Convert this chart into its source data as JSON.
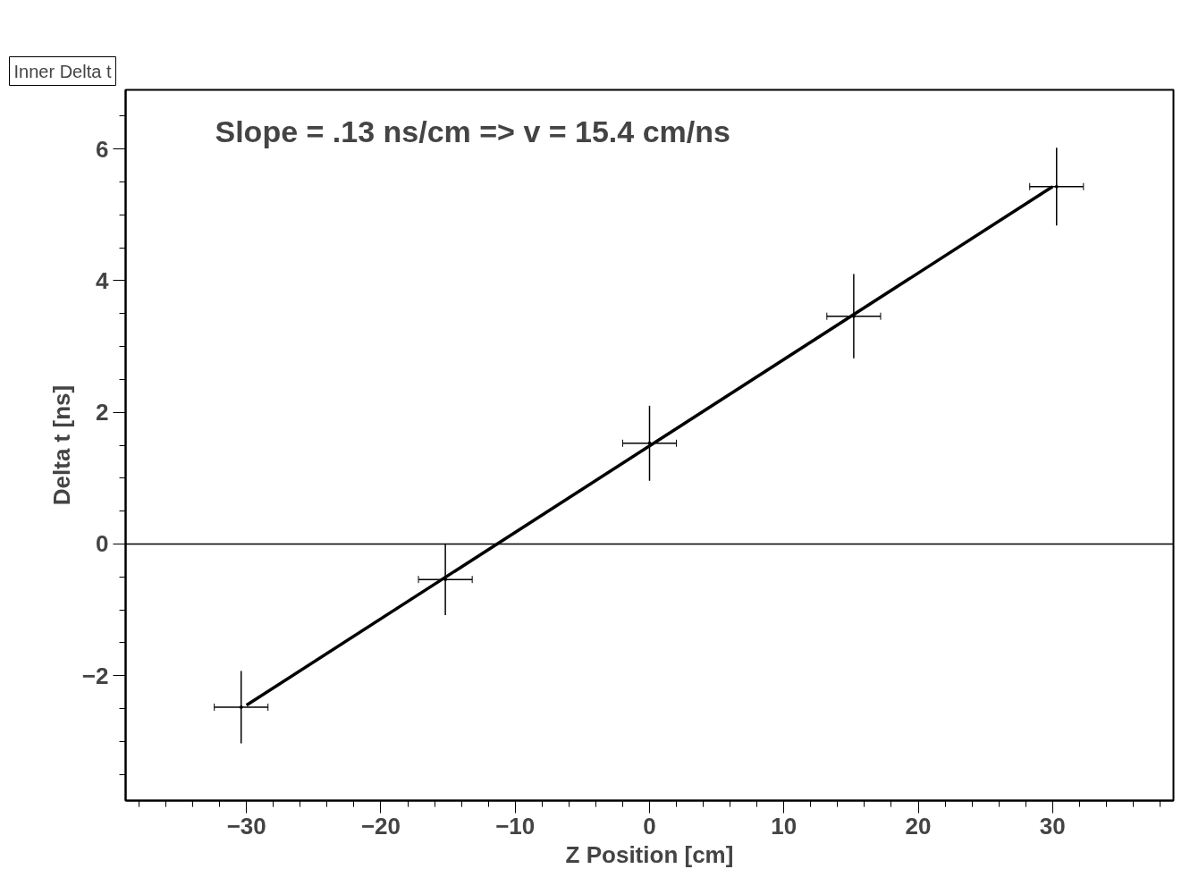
{
  "chart_data": {
    "type": "scatter",
    "title": "Inner Delta t",
    "xlabel": "Z Position [cm]",
    "ylabel": "Delta t [ns]",
    "annotations": [
      "Slope = .13 ns/cm => v = 15.4 cm/ns"
    ],
    "xlim": [
      -39,
      39
    ],
    "ylim": [
      -3.9,
      6.9
    ],
    "xticks": [
      -30,
      -20,
      -10,
      0,
      10,
      20,
      30
    ],
    "yticks": [
      -2,
      0,
      2,
      4,
      6
    ],
    "grid": false,
    "ref_lines": [
      {
        "axis": "y",
        "value": 0,
        "color": "#000000"
      }
    ],
    "series": [
      {
        "color": "#000000",
        "x": [
          -30.4,
          -15.2,
          0,
          15.2,
          30.3
        ],
        "values": [
          -2.48,
          -0.54,
          1.53,
          3.46,
          5.43
        ],
        "errors": [
          0.55,
          0.54,
          0.57,
          0.64,
          0.59
        ],
        "xerrors": [
          2,
          2,
          2,
          2,
          2
        ]
      },
      {
        "type": "line",
        "color": "#000000",
        "x": [
          -30,
          30
        ],
        "values": [
          -2.45,
          5.43
        ]
      }
    ]
  }
}
